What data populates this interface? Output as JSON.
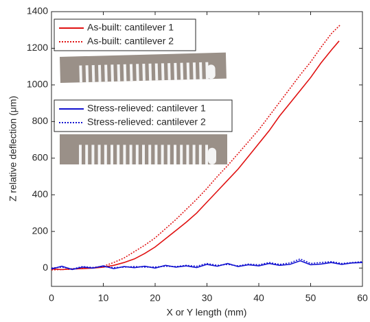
{
  "chart_data": {
    "type": "line",
    "xlabel": "X or Y length (mm)",
    "ylabel": "Z relative deflection (μm)",
    "xlim": [
      0,
      60
    ],
    "xticks": [
      0,
      10,
      20,
      30,
      40,
      50,
      60
    ],
    "ylim": [
      -100,
      1400
    ],
    "yticks": [
      0,
      200,
      400,
      600,
      800,
      1000,
      1200,
      1400
    ],
    "series": [
      {
        "name": "As-built: cantilever 1",
        "color": "#e01010",
        "dash": "solid",
        "x": [
          0,
          2,
          4,
          6,
          8,
          10,
          12,
          14,
          16,
          18,
          20,
          22,
          24,
          26,
          28,
          30,
          32,
          34,
          36,
          38,
          40,
          42,
          44,
          46,
          48,
          50,
          52,
          54,
          55.5
        ],
        "values": [
          -5,
          -8,
          -5,
          -3,
          0,
          5,
          15,
          30,
          50,
          80,
          115,
          160,
          205,
          250,
          300,
          360,
          420,
          480,
          540,
          610,
          680,
          750,
          830,
          900,
          970,
          1040,
          1120,
          1190,
          1240
        ]
      },
      {
        "name": "As-built: cantilever 2",
        "color": "#e01010",
        "dash": "dotted",
        "x": [
          0,
          2,
          4,
          6,
          8,
          10,
          12,
          14,
          16,
          18,
          20,
          22,
          24,
          26,
          28,
          30,
          32,
          34,
          36,
          38,
          40,
          42,
          44,
          46,
          48,
          50,
          52,
          54,
          55.8
        ],
        "values": [
          -10,
          -8,
          -6,
          -2,
          3,
          10,
          30,
          55,
          90,
          125,
          165,
          215,
          265,
          320,
          375,
          435,
          500,
          560,
          625,
          690,
          755,
          830,
          905,
          980,
          1055,
          1125,
          1205,
          1280,
          1330
        ]
      },
      {
        "name": "Stress-relieved: cantilever 1",
        "color": "#1010d0",
        "dash": "solid",
        "x": [
          0,
          2,
          4,
          6,
          8,
          10,
          12,
          14,
          16,
          18,
          20,
          22,
          24,
          26,
          28,
          30,
          32,
          34,
          36,
          38,
          40,
          42,
          44,
          46,
          48,
          50,
          52,
          54,
          56,
          58,
          60
        ],
        "values": [
          -5,
          10,
          -8,
          5,
          0,
          12,
          -3,
          8,
          2,
          10,
          0,
          15,
          5,
          12,
          3,
          20,
          10,
          25,
          8,
          18,
          12,
          25,
          15,
          20,
          40,
          18,
          22,
          30,
          20,
          28,
          30
        ]
      },
      {
        "name": "Stress-relieved: cantilever 2",
        "color": "#1010d0",
        "dash": "dotted",
        "x": [
          0,
          2,
          4,
          6,
          8,
          10,
          12,
          14,
          16,
          18,
          20,
          22,
          24,
          26,
          28,
          30,
          32,
          34,
          36,
          38,
          40,
          42,
          44,
          46,
          48,
          50,
          52,
          54,
          56,
          58,
          60
        ],
        "values": [
          0,
          5,
          -5,
          8,
          3,
          8,
          2,
          5,
          8,
          5,
          6,
          10,
          8,
          15,
          10,
          25,
          15,
          20,
          12,
          22,
          18,
          30,
          20,
          28,
          50,
          25,
          30,
          35,
          25,
          30,
          35
        ]
      }
    ]
  }
}
